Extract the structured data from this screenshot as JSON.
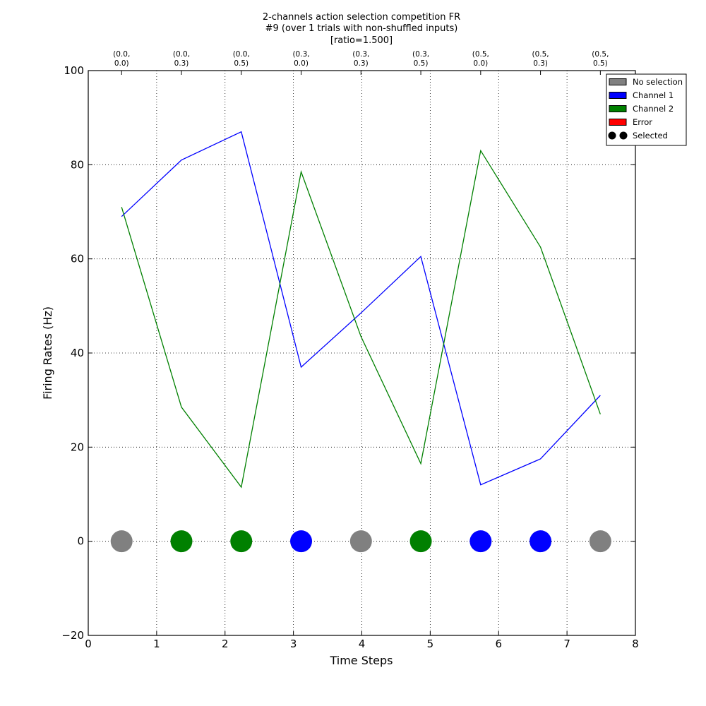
{
  "chart_data": {
    "type": "line",
    "title_lines": [
      "2-channels action selection competition FR",
      "#9 (over 1 trials with non-shuffled inputs)",
      "[ratio=1.500]"
    ],
    "xlabel": "Time Steps",
    "ylabel": "Firing Rates (Hz)",
    "xlim": [
      0,
      8
    ],
    "ylim": [
      -20,
      100
    ],
    "x_ticks": [
      0,
      1,
      2,
      3,
      4,
      5,
      6,
      7,
      8
    ],
    "y_ticks": [
      -20,
      0,
      20,
      40,
      60,
      80,
      100
    ],
    "x_tick_labels": [
      "0",
      "1",
      "2",
      "3",
      "4",
      "5",
      "6",
      "7",
      "8"
    ],
    "y_tick_labels": [
      "−20",
      "0",
      "20",
      "40",
      "60",
      "80",
      "100"
    ],
    "top_ticks": [
      {
        "x": 0.4875,
        "line1": "(0.0,",
        "line2": "0.0)"
      },
      {
        "x": 1.3625,
        "line1": "(0.0,",
        "line2": "0.3)"
      },
      {
        "x": 2.2375,
        "line1": "(0.0,",
        "line2": "0.5)"
      },
      {
        "x": 3.1125,
        "line1": "(0.3,",
        "line2": "0.0)"
      },
      {
        "x": 3.9875,
        "line1": "(0.3,",
        "line2": "0.3)"
      },
      {
        "x": 4.8625,
        "line1": "(0.3,",
        "line2": "0.5)"
      },
      {
        "x": 5.7375,
        "line1": "(0.5,",
        "line2": "0.0)"
      },
      {
        "x": 6.6125,
        "line1": "(0.5,",
        "line2": "0.3)"
      },
      {
        "x": 7.4875,
        "line1": "(0.5,",
        "line2": "0.5)"
      }
    ],
    "grid": true,
    "series": [
      {
        "name": "Channel 1",
        "color": "#0000ff",
        "x": [
          0.4875,
          1.3625,
          2.2375,
          3.1125,
          3.9875,
          4.8625,
          5.7375,
          6.6125,
          7.4875
        ],
        "y": [
          69.0,
          81.0,
          87.0,
          37.0,
          48.5,
          60.5,
          12.0,
          17.5,
          31.0
        ]
      },
      {
        "name": "Channel 2",
        "color": "#008000",
        "x": [
          0.4875,
          1.3625,
          2.2375,
          3.1125,
          3.9875,
          4.8625,
          5.7375,
          6.6125,
          7.4875
        ],
        "y": [
          71.0,
          28.5,
          11.5,
          78.5,
          43.5,
          16.5,
          83.0,
          62.5,
          27.0
        ]
      }
    ],
    "selections": {
      "y": 0,
      "x": [
        0.4875,
        1.3625,
        2.2375,
        3.1125,
        3.9875,
        4.8625,
        5.7375,
        6.6125,
        7.4875
      ],
      "selected": [
        "No selection",
        "Channel 2",
        "Channel 2",
        "Channel 1",
        "No selection",
        "Channel 2",
        "Channel 1",
        "Channel 1",
        "No selection"
      ]
    },
    "legend": {
      "placement": "top-right",
      "entries": [
        {
          "label": "No selection",
          "color": "#808080",
          "kind": "patch"
        },
        {
          "label": "Channel 1",
          "color": "#0000ff",
          "kind": "patch"
        },
        {
          "label": "Channel 2",
          "color": "#008000",
          "kind": "patch"
        },
        {
          "label": "Error",
          "color": "#ff0000",
          "kind": "patch"
        },
        {
          "label": "Selected",
          "color": "#000000",
          "kind": "marker"
        }
      ]
    },
    "colors": {
      "No selection": "#808080",
      "Channel 1": "#0000ff",
      "Channel 2": "#008000",
      "Error": "#ff0000"
    }
  }
}
